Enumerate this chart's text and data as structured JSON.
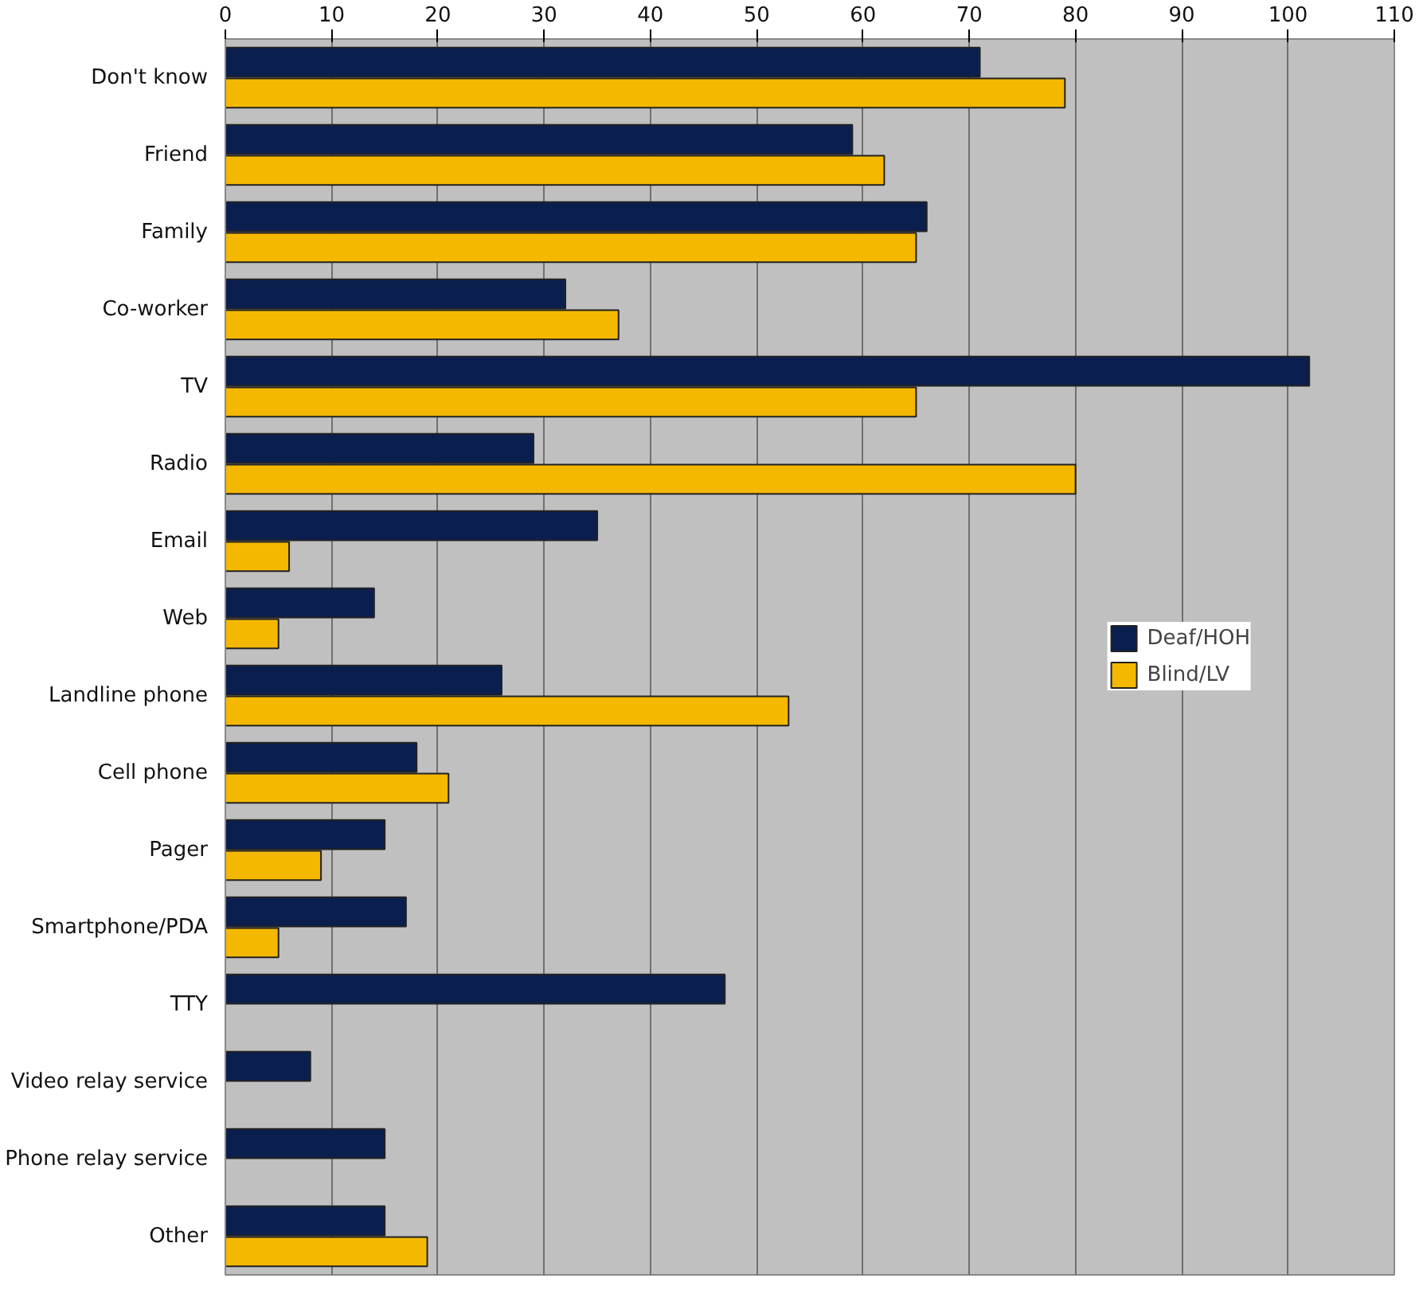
{
  "chart_data": {
    "type": "bar",
    "orientation": "horizontal",
    "categories": [
      "Don't know",
      "Friend",
      "Family",
      "Co-worker",
      "TV",
      "Radio",
      "Email",
      "Web",
      "Landline phone",
      "Cell phone",
      "Pager",
      "Smartphone/PDA",
      "TTY",
      "Video relay service",
      "Phone relay service",
      "Other"
    ],
    "series": [
      {
        "name": "Deaf/HOH",
        "color": "#0b1f4f",
        "values": [
          71,
          59,
          66,
          32,
          102,
          29,
          35,
          14,
          26,
          18,
          15,
          17,
          47,
          8,
          15,
          15
        ]
      },
      {
        "name": "Blind/LV",
        "color": "#f5b800",
        "values": [
          79,
          62,
          65,
          37,
          65,
          80,
          6,
          5,
          53,
          21,
          9,
          5,
          null,
          null,
          null,
          19
        ]
      }
    ],
    "xlim": [
      0,
      110
    ],
    "xticks": [
      0,
      10,
      20,
      30,
      40,
      50,
      60,
      70,
      80,
      90,
      100,
      110
    ],
    "grid": "x",
    "legend": "right"
  }
}
